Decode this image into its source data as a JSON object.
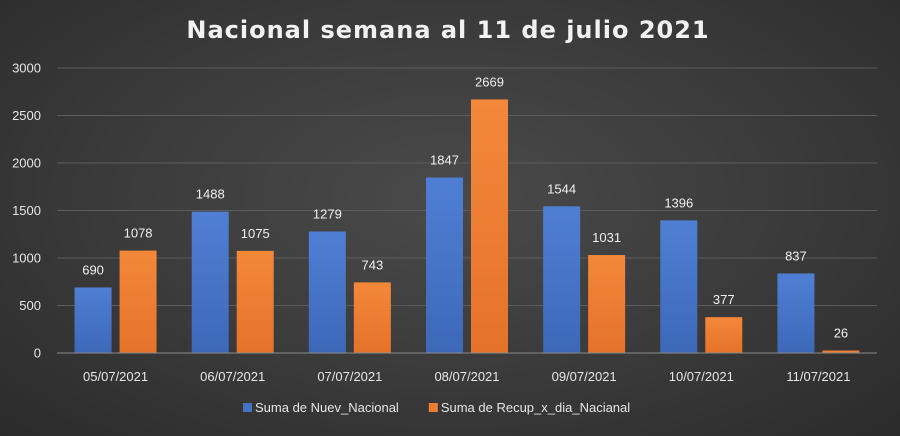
{
  "chart_data": {
    "type": "bar",
    "title": "Nacional semana al 11 de julio 2021",
    "categories": [
      "05/07/2021",
      "06/07/2021",
      "07/07/2021",
      "08/07/2021",
      "09/07/2021",
      "10/07/2021",
      "11/07/2021"
    ],
    "series": [
      {
        "name": "Suma de Nuev_Nacional",
        "color": "#4472c4",
        "values": [
          690,
          1488,
          1279,
          1847,
          1544,
          1396,
          837
        ]
      },
      {
        "name": "Suma de Recup_x_dia_Nacianal",
        "color": "#ed7d31",
        "values": [
          1078,
          1075,
          743,
          2669,
          1031,
          377,
          26
        ]
      }
    ],
    "yticks": [
      0,
      500,
      1000,
      1500,
      2000,
      2500,
      3000
    ],
    "ylim": [
      0,
      3000
    ],
    "xlabel": "",
    "ylabel": "",
    "legend": "bottom",
    "grid": true
  }
}
